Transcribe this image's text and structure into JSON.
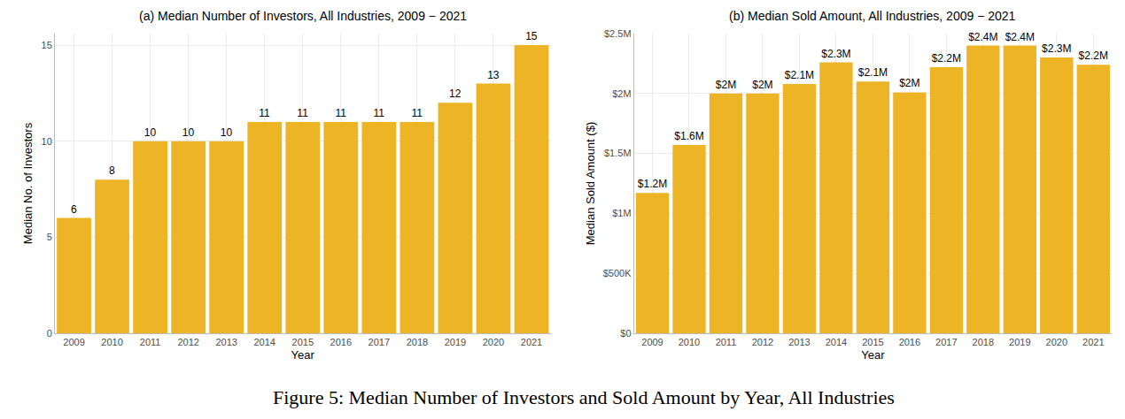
{
  "caption": "Figure 5: Median Number of Investors and Sold Amount by Year, All Industries",
  "chart_data": [
    {
      "type": "bar",
      "title": "(a) Median Number of Investors, All Industries, 2009 − 2021",
      "x_label": "Year",
      "y_label": "Median No. of Investors",
      "categories": [
        "2009",
        "2010",
        "2011",
        "2012",
        "2013",
        "2014",
        "2015",
        "2016",
        "2017",
        "2018",
        "2019",
        "2020",
        "2021"
      ],
      "values": [
        6,
        8,
        10,
        10,
        10,
        11,
        11,
        11,
        11,
        11,
        12,
        13,
        15
      ],
      "color": "#EDB525",
      "ylim": [
        0,
        15.6
      ],
      "yticks": [
        0,
        5,
        10,
        15
      ],
      "grid": true,
      "data_labels": true
    },
    {
      "type": "bar",
      "title": "(b) Median Sold Amount, All Industries, 2009 − 2021",
      "x_label": "Year",
      "y_label": "Median Sold Amount ($)",
      "categories": [
        "2009",
        "2010",
        "2011",
        "2012",
        "2013",
        "2014",
        "2015",
        "2016",
        "2017",
        "2018",
        "2019",
        "2020",
        "2021"
      ],
      "values": [
        1170000,
        1570000,
        2000000,
        2000000,
        2080000,
        2260000,
        2100000,
        2010000,
        2220000,
        2400000,
        2400000,
        2300000,
        2240000
      ],
      "value_labels": [
        "$1.2M",
        "$1.6M",
        "$2M",
        "$2M",
        "$2.1M",
        "$2.3M",
        "$2.1M",
        "$2M",
        "$2.2M",
        "$2.4M",
        "$2.4M",
        "$2.3M",
        "$2.2M"
      ],
      "color": "#EDB525",
      "ylim": [
        0,
        2500000
      ],
      "yticks": [
        {
          "value": 0,
          "label": "$0"
        },
        {
          "value": 500000,
          "label": "$500K"
        },
        {
          "value": 1000000,
          "label": "$1M"
        },
        {
          "value": 1500000,
          "label": "$1.5M"
        },
        {
          "value": 2000000,
          "label": "$2M"
        },
        {
          "value": 2500000,
          "label": "$2.5M"
        }
      ],
      "grid": true,
      "data_labels": true
    }
  ]
}
